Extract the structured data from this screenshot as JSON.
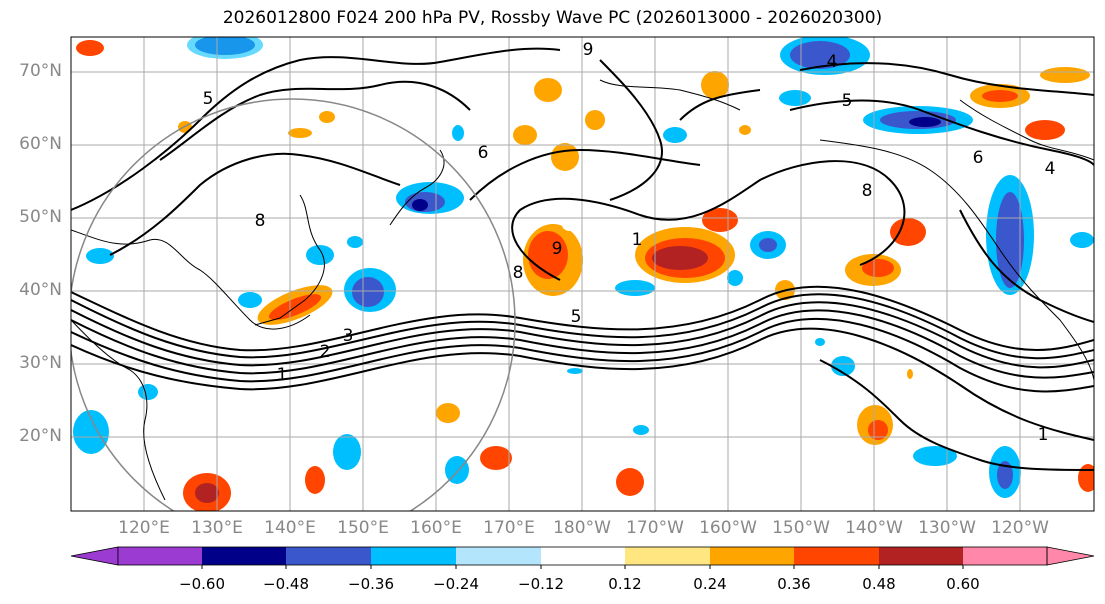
{
  "title": "2026012800 F024 200 hPa PV, Rossby Wave PC (2026013000 - 2026020300)",
  "latitude_labels": [
    "70°N",
    "60°N",
    "50°N",
    "40°N",
    "30°N",
    "20°N"
  ],
  "longitude_labels": [
    "120°E",
    "130°E",
    "140°E",
    "150°E",
    "160°E",
    "170°E",
    "180°W",
    "170°W",
    "160°W",
    "150°W",
    "140°W",
    "130°W",
    "120°W"
  ],
  "colorbar": {
    "tick_labels": [
      "−0.60",
      "−0.48",
      "−0.36",
      "−0.24",
      "−0.12",
      "0.12",
      "0.24",
      "0.36",
      "0.48",
      "0.60"
    ],
    "colors": [
      "#9b3bd1",
      "#000088",
      "#3b57cc",
      "#00bfff",
      "#b3e5fc",
      "#ffffff",
      "#ffe680",
      "#ffa500",
      "#ff4500",
      "#b22222",
      "#ff88aa"
    ]
  },
  "contour_labels": [
    "1",
    "2",
    "3",
    "5",
    "6",
    "8",
    "9",
    "4",
    "5",
    "8",
    "9",
    "6",
    "8",
    "5",
    "4",
    "1",
    "1"
  ]
}
